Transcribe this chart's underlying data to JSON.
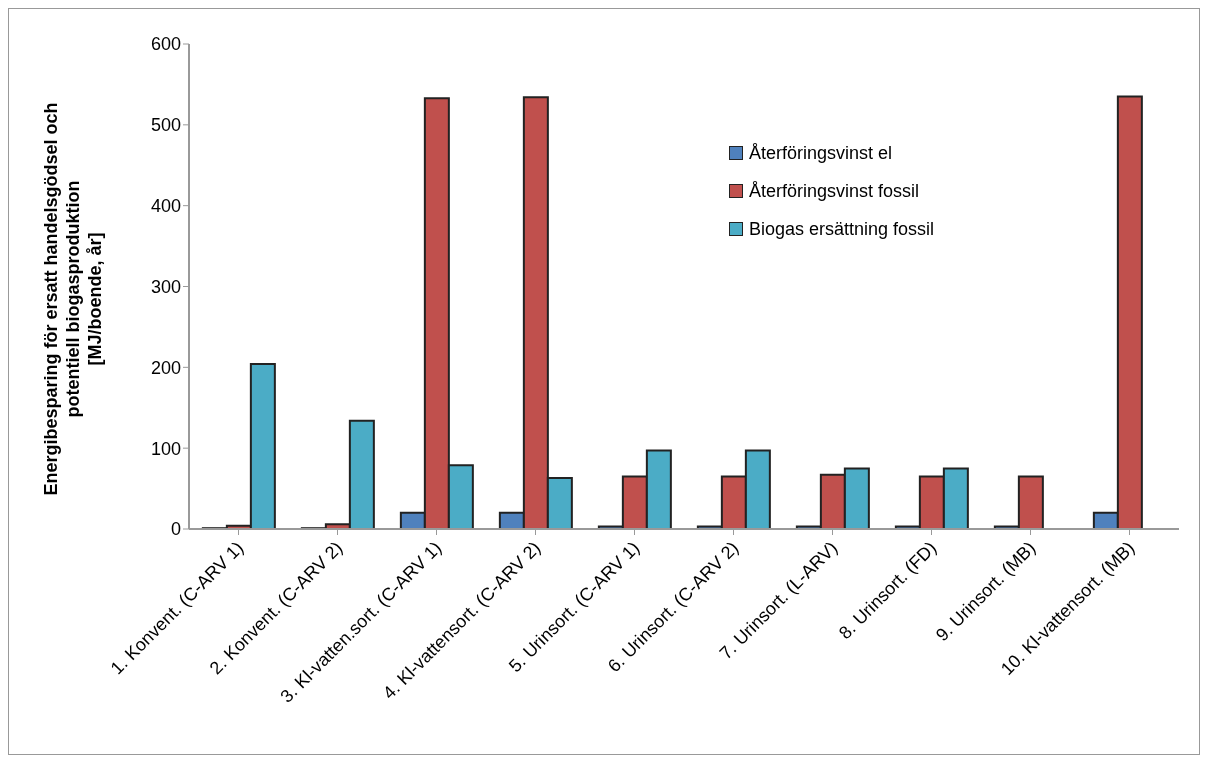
{
  "chart_data": {
    "type": "bar",
    "ylabel": "Energibesparing för ersatt handelsgödsel och\npotentiell biogasproduktion\n[MJ/boende, år]",
    "categories": [
      "1. Konvent. (C-ARV 1)",
      "2. Konvent. (C-ARV 2)",
      "3. Kl-vatten.sort. (C-ARV 1)",
      "4. Kl-vattensort. (C-ARV 2)",
      "5. Urinsort. (C-ARV 1)",
      "6. Urinsort. (C-ARV 2)",
      "7. Urinsort. (L-ARV)",
      "8. Urinsort. (FD)",
      "9. Urinsort. (MB)",
      "10. Kl-vattensort. (MB)"
    ],
    "series": [
      {
        "name": "Återföringsvinst el",
        "color": "#4f81bd",
        "values": [
          1,
          1,
          20,
          20,
          3,
          3,
          3,
          3,
          3,
          20
        ]
      },
      {
        "name": "Återföringsvinst fossil",
        "color": "#c0504d",
        "values": [
          4,
          6,
          533,
          534,
          65,
          65,
          67,
          65,
          65,
          535
        ]
      },
      {
        "name": "Biogas ersättning fossil",
        "color": "#4bacc6",
        "values": [
          204,
          134,
          79,
          63,
          97,
          97,
          75,
          75,
          null,
          null
        ]
      }
    ],
    "ylim": [
      0,
      600
    ],
    "yticks": [
      0,
      100,
      200,
      300,
      400,
      500,
      600
    ],
    "legend": "top right"
  }
}
